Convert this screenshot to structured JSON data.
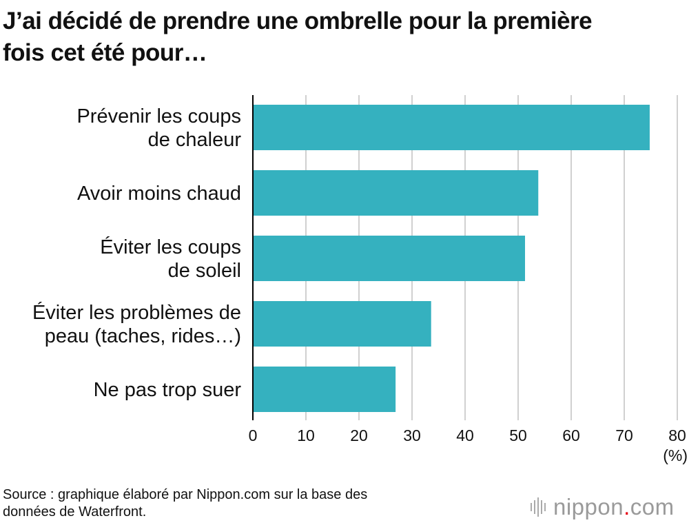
{
  "title": {
    "line1": "J’ai décidé de prendre une ombrelle pour la première",
    "line2": "fois cet été pour…"
  },
  "source": {
    "line1": "Source : graphique élaboré par Nippon.com sur la base des",
    "line2": "données de Waterfront."
  },
  "logo": {
    "name": "nippon",
    "dot": ".",
    "tld": "com",
    "icon": "sound-bars-icon"
  },
  "colors": {
    "bar": "#35b1bf",
    "grid": "#d0d0d0",
    "axis": "#000000",
    "logo_dot": "#e60012"
  },
  "chart_data": {
    "type": "bar",
    "orientation": "horizontal",
    "categories": [
      [
        "Prévenir les coups",
        "de chaleur"
      ],
      [
        "Avoir moins chaud"
      ],
      [
        "Éviter les coups",
        "de soleil"
      ],
      [
        "Éviter les problèmes de",
        "peau (taches, rides…)"
      ],
      [
        "Ne pas trop suer"
      ]
    ],
    "values": [
      74.8,
      53.8,
      51.3,
      33.6,
      26.9
    ],
    "xlim": [
      0,
      80
    ],
    "xticks": [
      "0",
      "10",
      "20",
      "30",
      "40",
      "50",
      "60",
      "70",
      "80"
    ],
    "xunit": "(%)",
    "grid": true
  }
}
